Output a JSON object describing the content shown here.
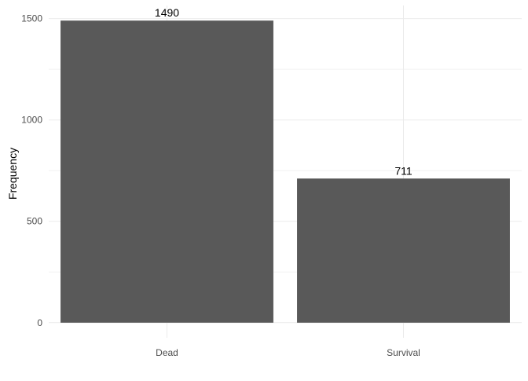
{
  "chart_data": {
    "type": "bar",
    "categories": [
      "Dead",
      "Survival"
    ],
    "values": [
      1490,
      711
    ],
    "data_labels": [
      "1490",
      "711"
    ],
    "title": "",
    "xlabel": "",
    "ylabel": "Frequency",
    "ylim": [
      0,
      1500
    ],
    "yticks": [
      0,
      500,
      1000,
      1500
    ],
    "ytick_labels": [
      "0",
      "500",
      "1000",
      "1500"
    ],
    "grid": true,
    "legend": "none",
    "bar_color": "#595959",
    "background": "#ffffff"
  }
}
